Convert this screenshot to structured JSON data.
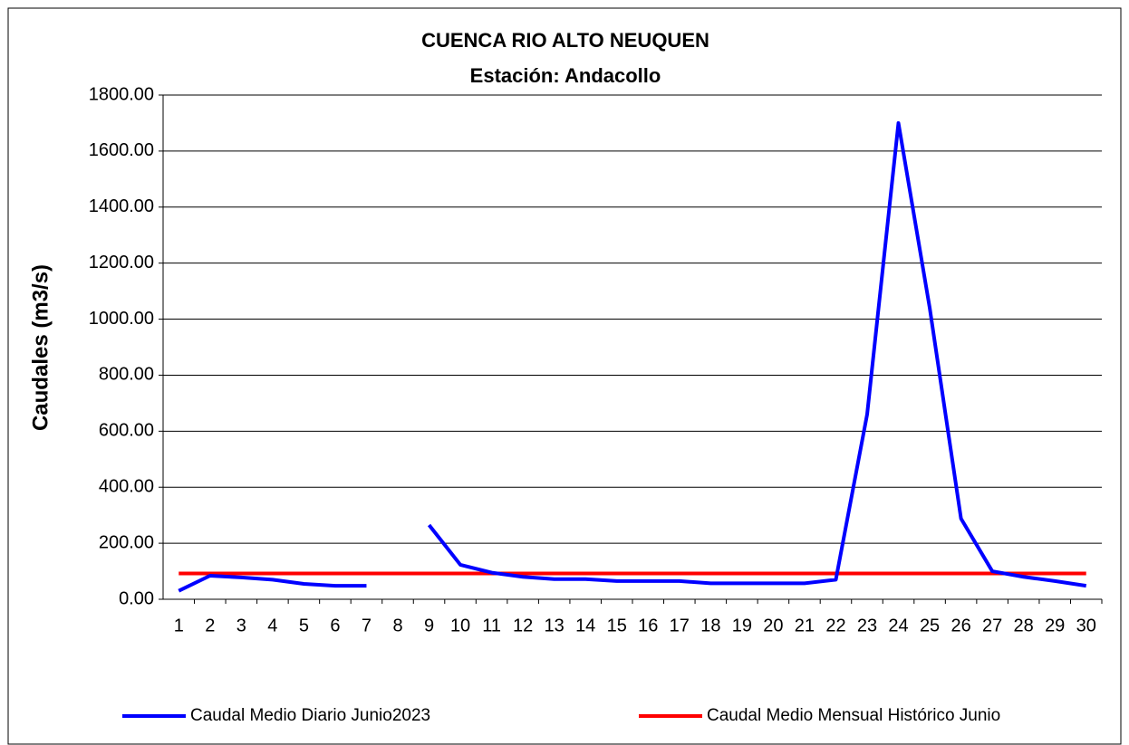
{
  "chart_data": {
    "type": "line",
    "title": "CUENCA RIO ALTO NEUQUEN",
    "subtitle": "Estación: Andacollo",
    "y_label": "Caudales (m3/s)",
    "categories": [
      "1",
      "2",
      "3",
      "4",
      "5",
      "6",
      "7",
      "8",
      "9",
      "10",
      "11",
      "12",
      "13",
      "14",
      "15",
      "16",
      "17",
      "18",
      "19",
      "20",
      "21",
      "22",
      "23",
      "24",
      "25",
      "26",
      "27",
      "28",
      "29",
      "30"
    ],
    "series": [
      {
        "name": "Caudal Medio Diario Junio2023",
        "color": "#0000ff",
        "values": [
          30,
          84,
          78,
          70,
          55,
          48,
          48,
          null,
          265,
          123,
          95,
          80,
          72,
          72,
          65,
          65,
          65,
          57,
          57,
          57,
          57,
          70,
          660,
          1700,
          1040,
          288,
          100,
          80,
          65,
          48
        ]
      },
      {
        "name": "Caudal Medio Mensual Histórico Junio",
        "color": "#ff0000",
        "values": [
          92,
          92,
          92,
          92,
          92,
          92,
          92,
          92,
          92,
          92,
          92,
          92,
          92,
          92,
          92,
          92,
          92,
          92,
          92,
          92,
          92,
          92,
          92,
          92,
          92,
          92,
          92,
          92,
          92,
          92
        ]
      }
    ],
    "ylim": [
      0,
      1800
    ],
    "yticks": [
      {
        "value": 0,
        "label": "0.00"
      },
      {
        "value": 200,
        "label": "200.00"
      },
      {
        "value": 400,
        "label": "400.00"
      },
      {
        "value": 600,
        "label": "600.00"
      },
      {
        "value": 800,
        "label": "800.00"
      },
      {
        "value": 1000,
        "label": "1000.00"
      },
      {
        "value": 1200,
        "label": "1200.00"
      },
      {
        "value": 1400,
        "label": "1400.00"
      },
      {
        "value": 1600,
        "label": "1600.00"
      },
      {
        "value": 1800,
        "label": "1800.00"
      }
    ],
    "grid": true,
    "legend": "bottom"
  }
}
